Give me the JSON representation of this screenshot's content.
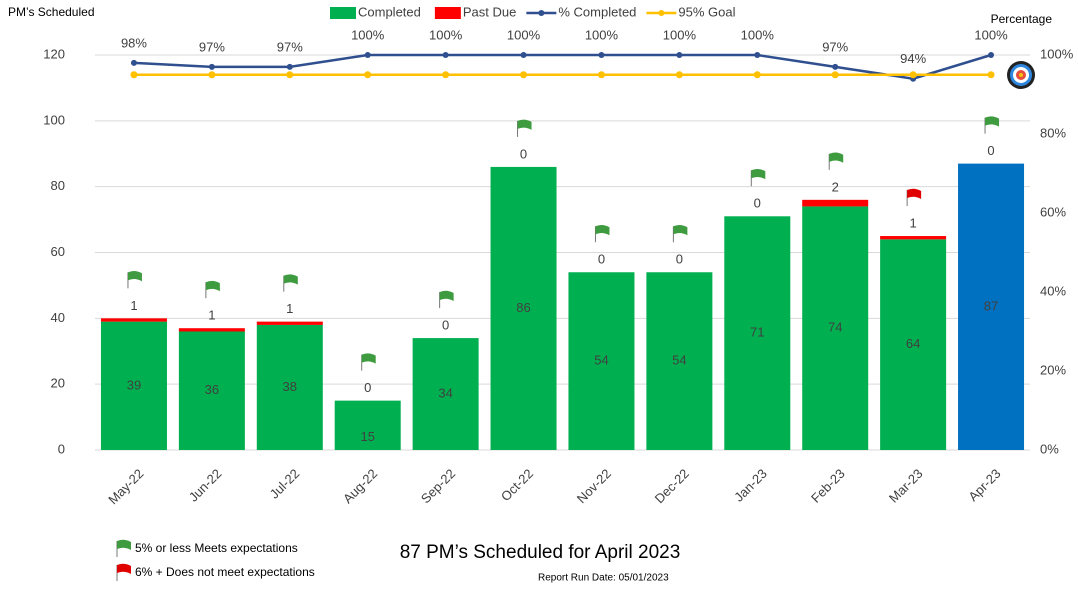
{
  "chart_data": {
    "type": "bar",
    "y_label": "PM’s Scheduled",
    "y2_label": "Percentage",
    "categories": [
      "May-22",
      "Jun-22",
      "Jul-22",
      "Aug-22",
      "Sep-22",
      "Oct-22",
      "Nov-22",
      "Dec-22",
      "Jan-23",
      "Feb-23",
      "Mar-23",
      "Apr-23"
    ],
    "series": [
      {
        "name": "Completed",
        "color": "#00b050",
        "colors": [
          "#00b050",
          "#00b050",
          "#00b050",
          "#00b050",
          "#00b050",
          "#00b050",
          "#00b050",
          "#00b050",
          "#00b050",
          "#00b050",
          "#00b050",
          "#0070c0"
        ],
        "values": [
          39,
          36,
          38,
          15,
          34,
          86,
          54,
          54,
          71,
          74,
          64,
          87
        ]
      },
      {
        "name": "Past Due",
        "color": "#ff0000",
        "values": [
          1,
          1,
          1,
          0,
          0,
          0,
          0,
          0,
          0,
          2,
          1,
          0
        ]
      },
      {
        "name": "% Completed",
        "color": "#2f4f8f",
        "axis": "y2",
        "values": [
          98,
          97,
          97,
          100,
          100,
          100,
          100,
          100,
          100,
          97,
          94,
          100
        ],
        "value_labels": [
          "98%",
          "97%",
          "97%",
          "100%",
          "100%",
          "100%",
          "100%",
          "100%",
          "100%",
          "97%",
          "94%",
          "100%"
        ]
      },
      {
        "name": "95% Goal",
        "color": "#ffc000",
        "axis": "y2",
        "values": [
          95,
          95,
          95,
          95,
          95,
          95,
          95,
          95,
          95,
          95,
          95,
          95
        ]
      }
    ],
    "flags": [
      "#3f9b3f",
      "#3f9b3f",
      "#3f9b3f",
      "#3f9b3f",
      "#3f9b3f",
      "#3f9b3f",
      "#3f9b3f",
      "#3f9b3f",
      "#3f9b3f",
      "#3f9b3f",
      "#e00000",
      "#3f9b3f"
    ],
    "flag_legend": [
      {
        "color": "#3f9b3f",
        "label": "5% or less Meets expectations"
      },
      {
        "color": "#e00000",
        "label": "6% +  Does not meet expectations"
      }
    ],
    "ylim": [
      0,
      120
    ],
    "yticks": [
      0,
      20,
      40,
      60,
      80,
      100,
      120
    ],
    "y2lim": [
      0,
      100
    ],
    "y2ticks": [
      {
        "value": 0,
        "label": "0%"
      },
      {
        "value": 20,
        "label": "20%"
      },
      {
        "value": 40,
        "label": "40%"
      },
      {
        "value": 60,
        "label": "60%"
      },
      {
        "value": 80,
        "label": "80%"
      },
      {
        "value": 100,
        "label": "100%"
      }
    ],
    "grid": true,
    "footer_title": "87 PM’s Scheduled for April 2023",
    "footer_note": "Report Run Date: 05/01/2023"
  }
}
